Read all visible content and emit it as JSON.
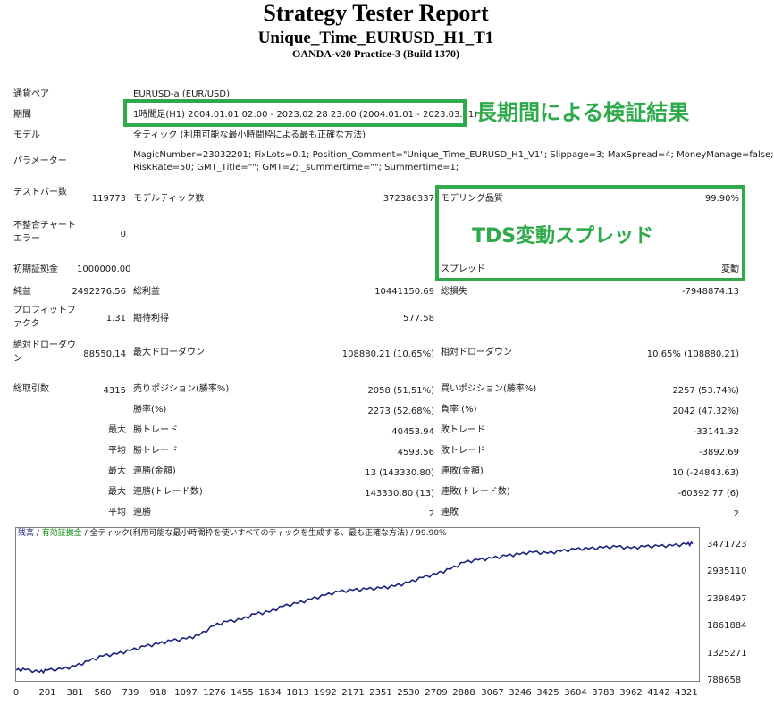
{
  "header": {
    "title": "Strategy Tester Report",
    "subtitle": "Unique_Time_EURUSD_H1_T1",
    "build": "OANDA-v20 Practice-3 (Build 1370)"
  },
  "settings": {
    "symbol_label": "通貨ペア",
    "symbol_value": "EURUSD-a (EUR/USD)",
    "period_label": "期間",
    "period_value": "1時間足(H1) 2004.01.01 02:00 - 2023.02.28 23:00 (2004.01.01 - 2023.03.01)",
    "model_label": "モデル",
    "model_value": "全ティック (利用可能な最小時間枠による最も正確な方法)",
    "params_label": "パラメーター",
    "params_line1": "MagicNumber=23032201; FixLots=0.1; Position_Comment=\"Unique_Time_EURUSD_H1_V1\"; Slippage=3; MaxSpread=4; MoneyManage=false;",
    "params_line2": "RiskRate=50; GMT_Title=\"\"; GMT=2; _summertime=\"\"; Summertime=1;"
  },
  "annotations": {
    "long_period": "長期間による検証結果",
    "tds_spread": "TDS変動スプレッド"
  },
  "stats": {
    "bars_label": "テストバー数",
    "bars_value": "119773",
    "ticks_label": "モデルティック数",
    "ticks_value": "372386337",
    "quality_label": "モデリング品質",
    "quality_value": "99.90%",
    "mismatch_label": "不整合チャートエラー",
    "mismatch_value": "0",
    "deposit_label": "初期証拠金",
    "deposit_value": "1000000.00",
    "spread_label": "スプレッド",
    "spread_value": "変動",
    "net_label": "純益",
    "net_value": "2492276.56",
    "gross_profit_label": "総利益",
    "gross_profit_value": "10441150.69",
    "gross_loss_label": "総損失",
    "gross_loss_value": "-7948874.13",
    "pf_label": "プロフィットファクタ",
    "pf_value": "1.31",
    "expected_label": "期待利得",
    "expected_value": "577.58",
    "abs_dd_label": "絶対ドローダウン",
    "abs_dd_value": "88550.14",
    "max_dd_label": "最大ドローダウン",
    "max_dd_value": "108880.21 (10.65%)",
    "rel_dd_label": "相対ドローダウン",
    "rel_dd_value": "10.65% (108880.21)",
    "total_trades_label": "総取引数",
    "total_trades_value": "4315",
    "short_label": "売りポジション(勝率%)",
    "short_value": "2058 (51.51%)",
    "long_label": "買いポジション(勝率%)",
    "long_value": "2257 (53.74%)",
    "win_pct_label": "勝率(%)",
    "win_pct_value": "2273 (52.68%)",
    "loss_pct_label": "負率 (%)",
    "loss_pct_value": "2042 (47.32%)",
    "max_word": "最大",
    "avg_word": "平均",
    "win_trade_label": "勝トレード",
    "max_win_value": "40453.94",
    "loss_trade_label": "敗トレード",
    "max_loss_value": "-33141.32",
    "avg_win_value": "4593.56",
    "avg_loss_value": "-3892.69",
    "consec_wins_amt_label": "連勝(金額)",
    "consec_wins_amt_value": "13 (143330.80)",
    "consec_losses_amt_label": "連敗(金額)",
    "consec_losses_amt_value": "10 (-24843.63)",
    "consec_wins_cnt_label": "連勝(トレード数)",
    "consec_wins_cnt_value": "143330.80 (13)",
    "consec_losses_cnt_label": "連敗(トレード数)",
    "consec_losses_cnt_value": "-60392.77 (6)",
    "avg_consec_wins_label": "連勝",
    "avg_consec_wins_value": "2",
    "avg_consec_losses_label": "連敗",
    "avg_consec_losses_value": "2"
  },
  "chart_legend": {
    "balance": "残高",
    "sep1": " / ",
    "equity": "有効証拠金",
    "rest": " / 全ティック(利用可能な最小時間枠を使いすべてのティックを生成する、最も正確な方法) / 99.90%"
  },
  "colors": {
    "line": "#1a237e",
    "highlight": "#2eaa4a",
    "frame": "#808080"
  },
  "chart_data": {
    "type": "line",
    "x_ticks": [
      "0",
      "201",
      "381",
      "560",
      "739",
      "918",
      "1097",
      "1276",
      "1455",
      "1634",
      "1813",
      "1992",
      "2171",
      "2351",
      "2530",
      "2709",
      "2888",
      "3067",
      "3246",
      "3425",
      "3604",
      "3783",
      "3962",
      "4142",
      "4321"
    ],
    "y_ticks": [
      "3471723",
      "2935110",
      "2398497",
      "1861884",
      "1325271",
      "788658"
    ],
    "ylim": [
      788658,
      3650000
    ],
    "xlim": [
      0,
      4400
    ],
    "series": [
      {
        "x": [
          0,
          60,
          150,
          201,
          300,
          381,
          470,
          560,
          650,
          739,
          830,
          918,
          1000,
          1097,
          1180,
          1276,
          1360,
          1455,
          1540,
          1634,
          1720,
          1813,
          1900,
          1992,
          2080,
          2171,
          2260,
          2351,
          2440,
          2530,
          2620,
          2709,
          2800,
          2888,
          2980,
          3067,
          3160,
          3246,
          3330,
          3425,
          3510,
          3604,
          3690,
          3783,
          3870,
          3962,
          4050,
          4142,
          4230,
          4321,
          4360
        ],
        "y": [
          1000000,
          1010000,
          960000,
          1000000,
          1020000,
          1080000,
          1180000,
          1280000,
          1320000,
          1390000,
          1470000,
          1520000,
          1580000,
          1620000,
          1690000,
          1880000,
          1960000,
          2000000,
          2110000,
          2150000,
          2260000,
          2320000,
          2400000,
          2480000,
          2550000,
          2580000,
          2600000,
          2620000,
          2660000,
          2730000,
          2830000,
          2900000,
          3000000,
          3130000,
          3180000,
          3210000,
          3260000,
          3290000,
          3330000,
          3310000,
          3350000,
          3390000,
          3400000,
          3420000,
          3440000,
          3410000,
          3440000,
          3450000,
          3460000,
          3490000,
          3500000
        ]
      }
    ]
  }
}
